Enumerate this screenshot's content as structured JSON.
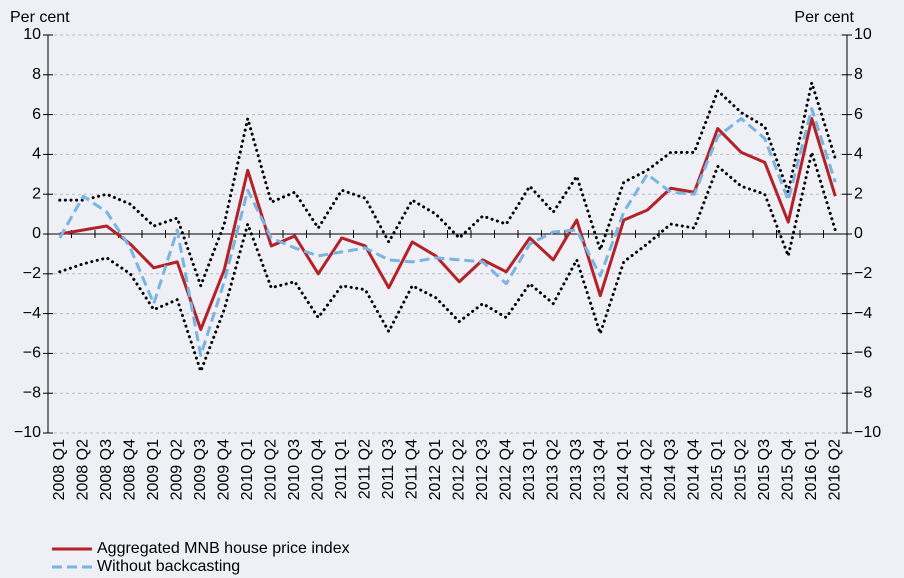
{
  "chart_data": {
    "type": "line",
    "y_label": "Per cent",
    "y2_label": "Per cent",
    "categories": [
      "2008 Q1",
      "2008 Q2",
      "2008 Q3",
      "2008 Q4",
      "2009 Q1",
      "2009 Q2",
      "2009 Q3",
      "2009 Q4",
      "2010 Q1",
      "2010 Q2",
      "2010 Q3",
      "2010 Q4",
      "2011 Q1",
      "2011 Q2",
      "2011 Q3",
      "2011 Q4",
      "2012 Q1",
      "2012 Q2",
      "2012 Q3",
      "2012 Q4",
      "2013 Q1",
      "2013 Q2",
      "2013 Q3",
      "2013 Q4",
      "2014 Q1",
      "2014 Q2",
      "2014 Q3",
      "2014 Q4",
      "2015 Q1",
      "2015 Q2",
      "2015 Q3",
      "2015 Q4",
      "2016 Q1",
      "2016 Q2"
    ],
    "series": [
      {
        "color": "#000000",
        "style": "dotted",
        "values": [
          1.7,
          1.7,
          2.0,
          1.5,
          0.4,
          0.8,
          -2.6,
          0.5,
          5.8,
          1.6,
          2.1,
          0.3,
          2.2,
          1.8,
          -0.4,
          1.7,
          1.0,
          -0.2,
          0.9,
          0.5,
          2.4,
          1.1,
          2.9,
          -0.8,
          2.6,
          3.2,
          4.1,
          4.1,
          7.2,
          6.1,
          5.4,
          2.1,
          7.6,
          3.8
        ]
      },
      {
        "color": "#000000",
        "style": "dotted",
        "values": [
          -1.9,
          -1.5,
          -1.2,
          -2.0,
          -3.8,
          -3.3,
          -6.9,
          -3.8,
          0.5,
          -2.7,
          -2.4,
          -4.2,
          -2.6,
          -2.8,
          -4.9,
          -2.6,
          -3.2,
          -4.4,
          -3.5,
          -4.2,
          -2.5,
          -3.5,
          -1.3,
          -5.0,
          -1.4,
          -0.5,
          0.5,
          0.3,
          3.4,
          2.4,
          2.0,
          -1.1,
          4.1,
          0.2
        ]
      },
      {
        "name": "Aggregated MNB house price index",
        "color": "#b32129",
        "style": "solid",
        "values": [
          0,
          0.2,
          0.4,
          -0.5,
          -1.7,
          -1.4,
          -4.8,
          -1.8,
          3.2,
          -0.6,
          -0.1,
          -2.0,
          -0.2,
          -0.6,
          -2.7,
          -0.4,
          -1.1,
          -2.4,
          -1.3,
          -1.9,
          -0.2,
          -1.3,
          0.7,
          -3.1,
          0.7,
          1.2,
          2.3,
          2.1,
          5.3,
          4.1,
          3.6,
          0.6,
          5.8,
          1.9
        ]
      },
      {
        "name": "Without backcasting",
        "color": "#7ab4e0",
        "style": "dashed",
        "values": [
          -0.2,
          1.9,
          1.1,
          -0.7,
          -3.5,
          0.2,
          -6.1,
          -2.4,
          2.2,
          -0.2,
          -0.7,
          -1.1,
          -0.9,
          -0.7,
          -1.3,
          -1.4,
          -1.2,
          -1.3,
          -1.4,
          -2.5,
          -0.5,
          0.1,
          0.2,
          -2.1,
          1.1,
          3.0,
          2.1,
          2.0,
          4.9,
          5.8,
          4.8,
          1.7,
          6.3,
          2.6
        ]
      }
    ],
    "ylim": [
      -10,
      10
    ],
    "yticks": [
      {
        "value": -10,
        "label": "−10"
      },
      {
        "value": -8,
        "label": "−8"
      },
      {
        "value": -6,
        "label": "−6"
      },
      {
        "value": -4,
        "label": "−4"
      },
      {
        "value": -2,
        "label": "−2"
      },
      0,
      2,
      4,
      6,
      8,
      10
    ],
    "grid": true
  }
}
